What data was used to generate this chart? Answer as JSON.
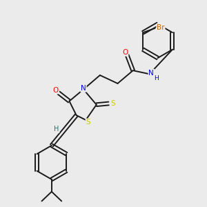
{
  "bg_color": "#ebebeb",
  "bond_color": "#1a1a1a",
  "atom_colors": {
    "O": "#ff0000",
    "N": "#0000ee",
    "S": "#cccc00",
    "Br": "#cc6600",
    "H": "#008080",
    "C": "#1a1a1a"
  }
}
